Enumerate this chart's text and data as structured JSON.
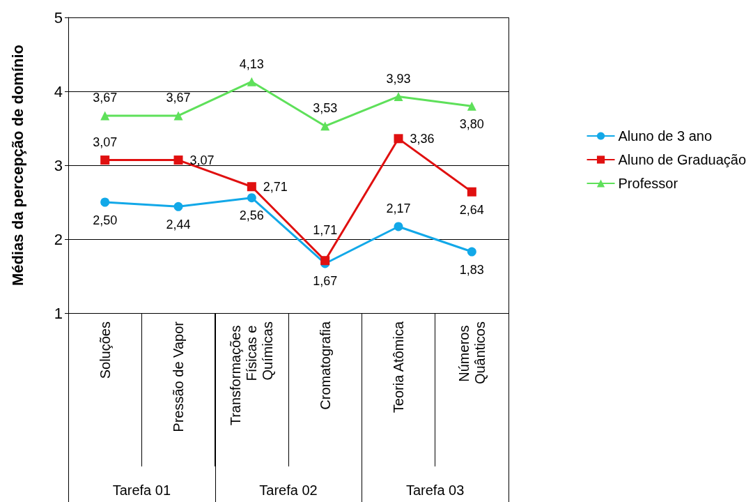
{
  "chart_data": {
    "type": "line",
    "ylabel": "Médias da percepção de domínio",
    "categories": [
      "Soluções",
      "Pressão de Vapor",
      "Transformações Físicas e Químicas",
      "Cromatografia",
      "Teoria Atômica",
      "Números Quânticos"
    ],
    "series": [
      {
        "name": "Aluno de 3 ano",
        "color": "#12a8e8",
        "marker": "circle",
        "values": [
          2.5,
          2.44,
          2.56,
          1.67,
          2.17,
          1.83
        ],
        "value_labels": [
          "2,50",
          "2,44",
          "2,56",
          "1,67",
          "2,17",
          "1,83"
        ]
      },
      {
        "name": "Aluno de Graduação",
        "color": "#e01010",
        "marker": "square",
        "values": [
          3.07,
          3.07,
          2.71,
          1.71,
          3.36,
          2.64
        ],
        "value_labels": [
          "3,07",
          "3,07",
          "2,71",
          "1,71",
          "3,36",
          "2,64"
        ]
      },
      {
        "name": "Professor",
        "color": "#5ee05a",
        "marker": "triangle",
        "values": [
          3.67,
          3.67,
          4.13,
          3.53,
          3.93,
          3.8
        ],
        "value_labels": [
          "3,67",
          "3,67",
          "4,13",
          "3,53",
          "3,93",
          "3,80"
        ]
      }
    ],
    "annotations": [
      "Tarefa 01",
      "Tarefa 02",
      "Tarefa 03"
    ],
    "ylim": [
      1,
      5
    ],
    "yticks": [
      1,
      2,
      3,
      4,
      5
    ],
    "grid": "y",
    "legend": "right"
  }
}
